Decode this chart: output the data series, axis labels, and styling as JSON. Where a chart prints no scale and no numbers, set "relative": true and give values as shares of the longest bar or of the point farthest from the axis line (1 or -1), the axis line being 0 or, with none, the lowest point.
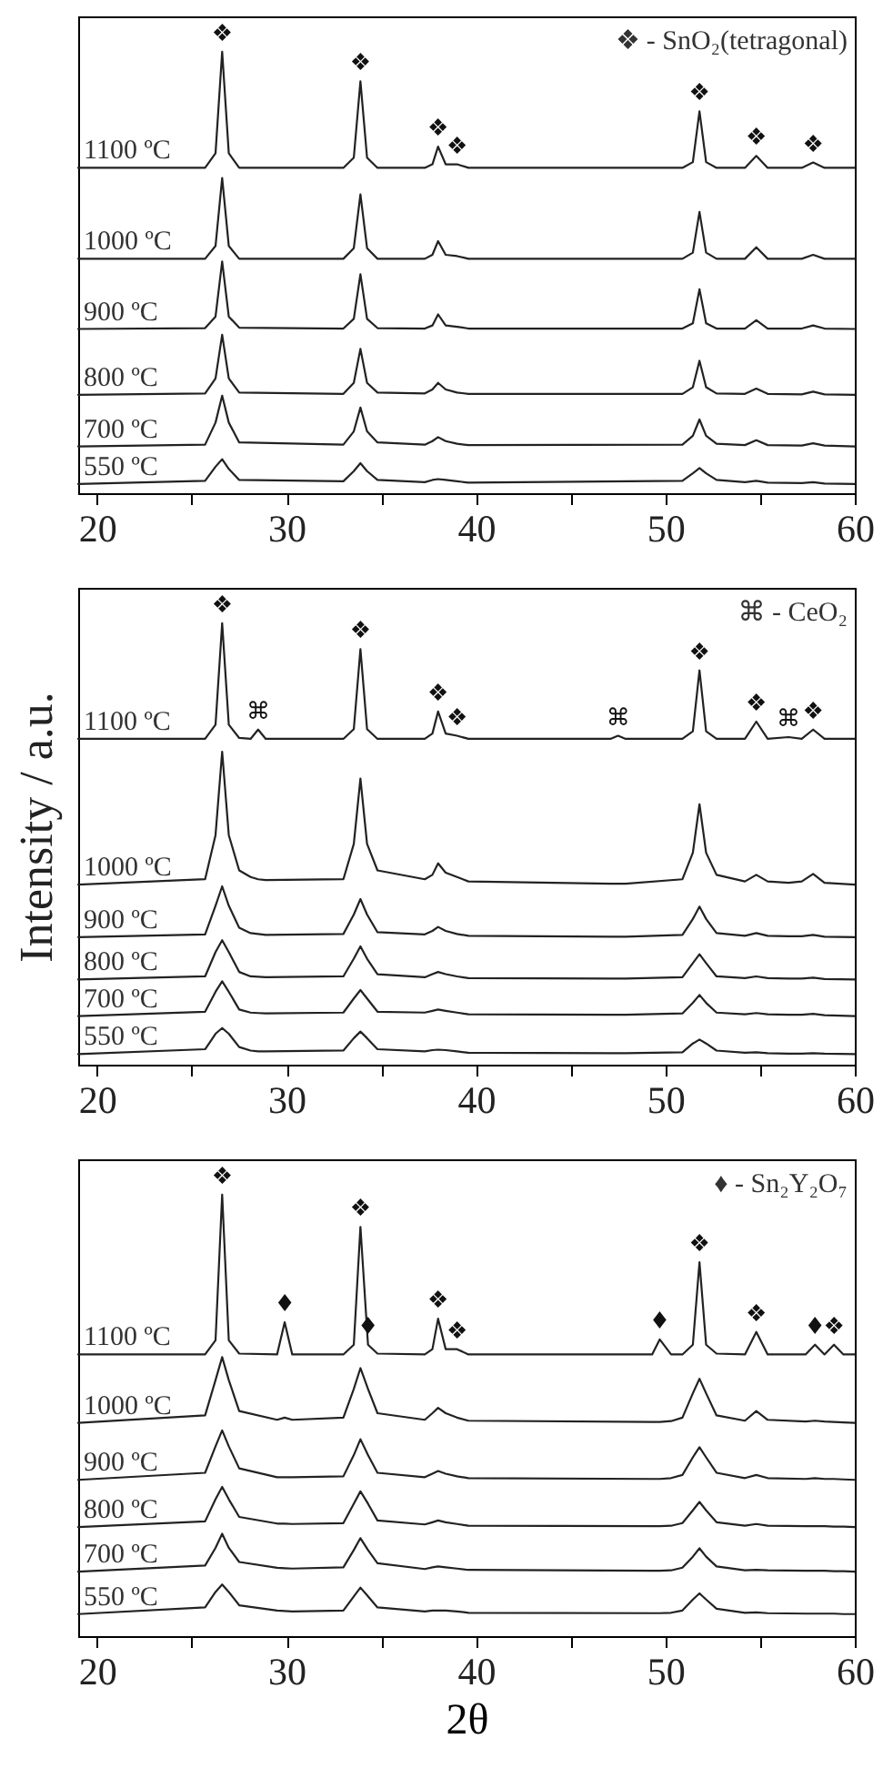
{
  "chart_data": [
    {
      "type": "line",
      "relative": true,
      "tick_labels": "x",
      "xlim": [
        19,
        60
      ],
      "xticks": [
        20,
        {
          "value": 25,
          "label": null
        },
        30,
        {
          "value": 35,
          "label": null
        },
        40,
        {
          "value": 45,
          "label": null
        },
        50,
        {
          "value": 55,
          "label": null
        },
        60
      ],
      "x": [
        19,
        25.7,
        26.25,
        26.6,
        26.95,
        27.5,
        33.0,
        33.55,
        33.9,
        34.25,
        34.8,
        37.3,
        37.7,
        38.0,
        38.4,
        39.0,
        39.6,
        50.9,
        51.45,
        51.8,
        52.15,
        52.7,
        54.2,
        54.8,
        55.4,
        57.2,
        57.8,
        58.4,
        60
      ],
      "series": [
        {
          "name": "1100 ºC",
          "color": "#222222",
          "values": [
            0.737,
            0.737,
            0.77,
            1.0,
            0.77,
            0.737,
            0.737,
            0.76,
            0.933,
            0.76,
            0.737,
            0.737,
            0.745,
            0.785,
            0.745,
            0.745,
            0.737,
            0.737,
            0.75,
            0.865,
            0.75,
            0.737,
            0.737,
            0.764,
            0.737,
            0.737,
            0.749,
            0.737,
            0.737
          ]
        },
        {
          "name": "1000 ºC",
          "color": "#222222",
          "values": [
            0.531,
            0.531,
            0.56,
            0.714,
            0.56,
            0.531,
            0.531,
            0.555,
            0.677,
            0.555,
            0.531,
            0.531,
            0.54,
            0.571,
            0.54,
            0.537,
            0.531,
            0.531,
            0.545,
            0.637,
            0.545,
            0.531,
            0.531,
            0.557,
            0.531,
            0.531,
            0.54,
            0.531,
            0.531
          ]
        },
        {
          "name": "900 ºC",
          "color": "#222222",
          "values": [
            0.372,
            0.374,
            0.4,
            0.525,
            0.4,
            0.375,
            0.373,
            0.395,
            0.496,
            0.395,
            0.374,
            0.373,
            0.38,
            0.405,
            0.38,
            0.377,
            0.373,
            0.373,
            0.385,
            0.462,
            0.385,
            0.373,
            0.373,
            0.392,
            0.373,
            0.373,
            0.38,
            0.373,
            0.372
          ]
        },
        {
          "name": "800 ºC",
          "color": "#222222",
          "values": [
            0.223,
            0.226,
            0.26,
            0.359,
            0.26,
            0.228,
            0.225,
            0.25,
            0.327,
            0.25,
            0.228,
            0.226,
            0.235,
            0.25,
            0.235,
            0.228,
            0.225,
            0.225,
            0.24,
            0.3,
            0.24,
            0.226,
            0.225,
            0.237,
            0.225,
            0.224,
            0.23,
            0.224,
            0.223
          ]
        },
        {
          "name": "700 ºC",
          "color": "#222222",
          "values": [
            0.106,
            0.11,
            0.16,
            0.221,
            0.16,
            0.115,
            0.11,
            0.14,
            0.194,
            0.14,
            0.115,
            0.11,
            0.118,
            0.127,
            0.118,
            0.112,
            0.109,
            0.11,
            0.13,
            0.167,
            0.13,
            0.112,
            0.109,
            0.12,
            0.109,
            0.108,
            0.113,
            0.108,
            0.106
          ]
        },
        {
          "name": "550 ºC",
          "color": "#222222",
          "values": [
            0.021,
            0.028,
            0.06,
            0.077,
            0.055,
            0.03,
            0.027,
            0.05,
            0.068,
            0.05,
            0.03,
            0.025,
            0.03,
            0.032,
            0.03,
            0.027,
            0.024,
            0.028,
            0.045,
            0.057,
            0.045,
            0.03,
            0.025,
            0.028,
            0.024,
            0.023,
            0.025,
            0.022,
            0.021
          ]
        }
      ],
      "annotations": [
        "❖ - SnO₂(tetragonal)",
        {
          "text": "❖",
          "x": 26.6,
          "y": 1.0
        },
        {
          "text": "❖",
          "x": 33.9,
          "y": 0.933
        },
        {
          "text": "❖",
          "x": 38.0,
          "y": 0.785
        },
        {
          "text": "❖",
          "x": 39.0,
          "y": 0.745
        },
        {
          "text": "❖",
          "x": 51.8,
          "y": 0.865
        },
        {
          "text": "❖",
          "x": 54.8,
          "y": 0.764
        },
        {
          "text": "❖",
          "x": 57.8,
          "y": 0.749
        }
      ]
    },
    {
      "type": "line",
      "relative": true,
      "tick_labels": "x",
      "ylabel": "Intensity / a.u.",
      "xlim": [
        19,
        60
      ],
      "xticks": [
        20,
        {
          "value": 25,
          "label": null
        },
        30,
        {
          "value": 35,
          "label": null
        },
        40,
        {
          "value": 45,
          "label": null
        },
        50,
        {
          "value": 55,
          "label": null
        },
        60
      ],
      "x": [
        19,
        25.7,
        26.25,
        26.6,
        26.95,
        27.5,
        28.1,
        28.5,
        28.9,
        33.0,
        33.55,
        33.9,
        34.25,
        34.8,
        37.3,
        37.7,
        38.0,
        38.4,
        39.0,
        39.6,
        47.1,
        47.5,
        47.9,
        50.9,
        51.45,
        51.8,
        52.15,
        52.7,
        54.2,
        54.8,
        55.4,
        56.5,
        57.2,
        57.8,
        58.4,
        60
      ],
      "series": [
        {
          "name": "1100 ºC",
          "color": "#222222",
          "values": [
            0.738,
            0.738,
            0.77,
            1.0,
            0.77,
            0.74,
            0.738,
            0.759,
            0.738,
            0.738,
            0.76,
            0.941,
            0.76,
            0.738,
            0.738,
            0.75,
            0.8,
            0.75,
            0.745,
            0.738,
            0.738,
            0.745,
            0.738,
            0.738,
            0.755,
            0.893,
            0.755,
            0.738,
            0.738,
            0.777,
            0.738,
            0.742,
            0.738,
            0.759,
            0.738,
            0.738
          ]
        },
        {
          "name": "1000 ºC",
          "color": "#222222",
          "values": [
            0.408,
            0.42,
            0.52,
            0.709,
            0.52,
            0.44,
            0.425,
            0.42,
            0.418,
            0.42,
            0.5,
            0.648,
            0.5,
            0.44,
            0.42,
            0.43,
            0.456,
            0.435,
            0.425,
            0.415,
            0.41,
            0.41,
            0.41,
            0.42,
            0.48,
            0.59,
            0.48,
            0.43,
            0.415,
            0.43,
            0.415,
            0.412,
            0.415,
            0.432,
            0.412,
            0.408
          ]
        },
        {
          "name": "900 ºC",
          "color": "#222222",
          "values": [
            0.289,
            0.295,
            0.36,
            0.404,
            0.36,
            0.31,
            0.298,
            0.296,
            0.294,
            0.296,
            0.34,
            0.375,
            0.34,
            0.3,
            0.295,
            0.303,
            0.312,
            0.303,
            0.296,
            0.292,
            0.29,
            0.29,
            0.29,
            0.294,
            0.33,
            0.358,
            0.33,
            0.298,
            0.292,
            0.298,
            0.292,
            0.291,
            0.291,
            0.294,
            0.29,
            0.289
          ]
        },
        {
          "name": "800 ºC",
          "color": "#222222",
          "values": [
            0.193,
            0.2,
            0.255,
            0.282,
            0.255,
            0.21,
            0.2,
            0.199,
            0.198,
            0.2,
            0.24,
            0.268,
            0.24,
            0.205,
            0.198,
            0.205,
            0.21,
            0.205,
            0.2,
            0.196,
            0.195,
            0.195,
            0.195,
            0.198,
            0.23,
            0.25,
            0.23,
            0.2,
            0.196,
            0.2,
            0.196,
            0.195,
            0.195,
            0.197,
            0.194,
            0.193
          ]
        },
        {
          "name": "700 ºC",
          "color": "#222222",
          "values": [
            0.11,
            0.12,
            0.165,
            0.189,
            0.165,
            0.125,
            0.118,
            0.117,
            0.116,
            0.118,
            0.15,
            0.169,
            0.15,
            0.12,
            0.118,
            0.122,
            0.125,
            0.122,
            0.118,
            0.114,
            0.113,
            0.113,
            0.113,
            0.116,
            0.14,
            0.158,
            0.14,
            0.118,
            0.114,
            0.117,
            0.114,
            0.113,
            0.113,
            0.115,
            0.112,
            0.11
          ]
        },
        {
          "name": "550 ºC",
          "color": "#222222",
          "values": [
            0.024,
            0.035,
            0.07,
            0.083,
            0.07,
            0.04,
            0.032,
            0.03,
            0.03,
            0.032,
            0.06,
            0.075,
            0.06,
            0.035,
            0.03,
            0.033,
            0.034,
            0.033,
            0.03,
            0.027,
            0.026,
            0.026,
            0.026,
            0.028,
            0.048,
            0.057,
            0.048,
            0.032,
            0.027,
            0.028,
            0.026,
            0.025,
            0.025,
            0.026,
            0.025,
            0.024
          ]
        }
      ],
      "annotations": [
        "⌘ - CeO₂",
        {
          "text": "❖",
          "x": 26.6,
          "y": 1.0
        },
        {
          "text": "❖",
          "x": 33.9,
          "y": 0.941
        },
        {
          "text": "❖",
          "x": 38.0,
          "y": 0.8
        },
        {
          "text": "❖",
          "x": 39.0,
          "y": 0.745
        },
        {
          "text": "❖",
          "x": 51.8,
          "y": 0.893
        },
        {
          "text": "❖",
          "x": 54.8,
          "y": 0.777
        },
        {
          "text": "❖",
          "x": 57.8,
          "y": 0.759
        },
        {
          "text": "⌘",
          "x": 28.5,
          "y": 0.759
        },
        {
          "text": "⌘",
          "x": 47.5,
          "y": 0.745
        },
        {
          "text": "⌘",
          "x": 56.5,
          "y": 0.742
        }
      ]
    },
    {
      "type": "line",
      "relative": true,
      "tick_labels": "x",
      "xlabel": "2θ",
      "xlim": [
        19,
        60
      ],
      "xticks": [
        20,
        {
          "value": 25,
          "label": null
        },
        30,
        {
          "value": 35,
          "label": null
        },
        40,
        {
          "value": 45,
          "label": null
        },
        50,
        {
          "value": 55,
          "label": null
        },
        60
      ],
      "x": [
        19,
        25.7,
        26.25,
        26.6,
        26.95,
        27.5,
        29.5,
        29.9,
        30.3,
        33.0,
        33.55,
        33.9,
        34.3,
        34.8,
        37.3,
        37.7,
        38.0,
        38.4,
        39.0,
        39.6,
        49.3,
        49.7,
        50.3,
        50.9,
        51.45,
        51.8,
        52.15,
        52.7,
        54.2,
        54.8,
        55.4,
        57.4,
        57.9,
        58.4,
        58.9,
        59.4,
        60
      ],
      "series": [
        {
          "name": "1100 ºC",
          "color": "#222222",
          "values": [
            0.638,
            0.638,
            0.67,
            1.0,
            0.67,
            0.64,
            0.638,
            0.711,
            0.638,
            0.638,
            0.66,
            0.927,
            0.66,
            0.64,
            0.638,
            0.65,
            0.719,
            0.65,
            0.65,
            0.638,
            0.638,
            0.672,
            0.638,
            0.638,
            0.66,
            0.847,
            0.66,
            0.64,
            0.638,
            0.689,
            0.638,
            0.638,
            0.66,
            0.638,
            0.66,
            0.638,
            0.638
          ]
        },
        {
          "name": "1000 ºC",
          "color": "#222222",
          "values": [
            0.483,
            0.5,
            0.58,
            0.632,
            0.58,
            0.51,
            0.49,
            0.495,
            0.49,
            0.495,
            0.56,
            0.607,
            0.56,
            0.505,
            0.49,
            0.505,
            0.517,
            0.505,
            0.495,
            0.488,
            0.485,
            0.485,
            0.487,
            0.495,
            0.55,
            0.583,
            0.55,
            0.5,
            0.488,
            0.51,
            0.49,
            0.486,
            0.488,
            0.486,
            0.485,
            0.484,
            0.483
          ]
        },
        {
          "name": "900 ºC",
          "color": "#222222",
          "values": [
            0.354,
            0.37,
            0.43,
            0.466,
            0.43,
            0.38,
            0.36,
            0.36,
            0.36,
            0.362,
            0.41,
            0.446,
            0.41,
            0.37,
            0.36,
            0.368,
            0.374,
            0.368,
            0.362,
            0.358,
            0.356,
            0.356,
            0.358,
            0.365,
            0.405,
            0.428,
            0.405,
            0.37,
            0.358,
            0.365,
            0.358,
            0.356,
            0.358,
            0.356,
            0.356,
            0.355,
            0.354
          ]
        },
        {
          "name": "800 ºC",
          "color": "#222222",
          "values": [
            0.247,
            0.26,
            0.31,
            0.338,
            0.31,
            0.27,
            0.255,
            0.255,
            0.254,
            0.256,
            0.3,
            0.328,
            0.3,
            0.262,
            0.253,
            0.258,
            0.262,
            0.258,
            0.254,
            0.25,
            0.249,
            0.249,
            0.25,
            0.256,
            0.285,
            0.304,
            0.285,
            0.258,
            0.25,
            0.254,
            0.25,
            0.249,
            0.249,
            0.249,
            0.248,
            0.248,
            0.247
          ]
        },
        {
          "name": "700 ºC",
          "color": "#222222",
          "values": [
            0.146,
            0.16,
            0.2,
            0.232,
            0.2,
            0.168,
            0.155,
            0.154,
            0.153,
            0.156,
            0.195,
            0.222,
            0.195,
            0.165,
            0.152,
            0.156,
            0.158,
            0.156,
            0.153,
            0.15,
            0.148,
            0.148,
            0.149,
            0.155,
            0.18,
            0.199,
            0.18,
            0.158,
            0.149,
            0.15,
            0.149,
            0.148,
            0.148,
            0.148,
            0.147,
            0.147,
            0.146
          ]
        },
        {
          "name": "550 ºC",
          "color": "#222222",
          "values": [
            0.05,
            0.065,
            0.1,
            0.117,
            0.1,
            0.07,
            0.058,
            0.057,
            0.056,
            0.058,
            0.09,
            0.11,
            0.09,
            0.065,
            0.056,
            0.058,
            0.058,
            0.058,
            0.056,
            0.053,
            0.052,
            0.052,
            0.053,
            0.058,
            0.083,
            0.097,
            0.083,
            0.062,
            0.053,
            0.054,
            0.052,
            0.051,
            0.051,
            0.051,
            0.051,
            0.05,
            0.05
          ]
        }
      ],
      "annotations": [
        "♦ - Sn₂Y₂O₇",
        {
          "text": "❖",
          "x": 26.6,
          "y": 1.0
        },
        {
          "text": "❖",
          "x": 33.9,
          "y": 0.927
        },
        {
          "text": "❖",
          "x": 38.0,
          "y": 0.719
        },
        {
          "text": "❖",
          "x": 39.0,
          "y": 0.65
        },
        {
          "text": "❖",
          "x": 51.8,
          "y": 0.847
        },
        {
          "text": "❖",
          "x": 54.8,
          "y": 0.689
        },
        {
          "text": "❖",
          "x": 58.9,
          "y": 0.66
        },
        {
          "text": "♦",
          "x": 29.9,
          "y": 0.711
        },
        {
          "text": "♦",
          "x": 34.3,
          "y": 0.66
        },
        {
          "text": "♦",
          "x": 49.7,
          "y": 0.672
        },
        {
          "text": "♦",
          "x": 57.9,
          "y": 0.66
        }
      ]
    }
  ]
}
